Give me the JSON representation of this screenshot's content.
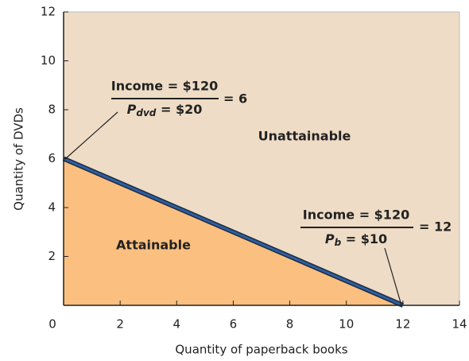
{
  "chart_data": {
    "type": "line",
    "x_label": "Quantity of paperback books",
    "y_label": "Quantity of DVDs",
    "x": [
      0,
      12
    ],
    "series": [
      {
        "values": [
          6,
          0
        ],
        "color": "#2f5f9e",
        "fill": "#fbbf80"
      }
    ],
    "background": "#eedcc6",
    "xlim": [
      0,
      14
    ],
    "xticks": [
      0,
      2,
      4,
      6,
      8,
      10,
      12,
      14
    ],
    "ylim": [
      0,
      12
    ],
    "yticks": [
      2,
      4,
      6,
      8,
      10,
      12
    ],
    "annotations": {
      "unattainable": "Unattainable",
      "attainable": "Attainable",
      "dvd_numerator": "Income = $120",
      "dvd_denominator_p": "P",
      "dvd_denominator_sub": "dvd",
      "dvd_denominator_rest": " = $20",
      "dvd_result": "= 6",
      "book_numerator": "Income = $120",
      "book_denominator_p": "P",
      "book_denominator_sub": "b",
      "book_denominator_rest": " = $10",
      "book_result": "= 12"
    }
  }
}
